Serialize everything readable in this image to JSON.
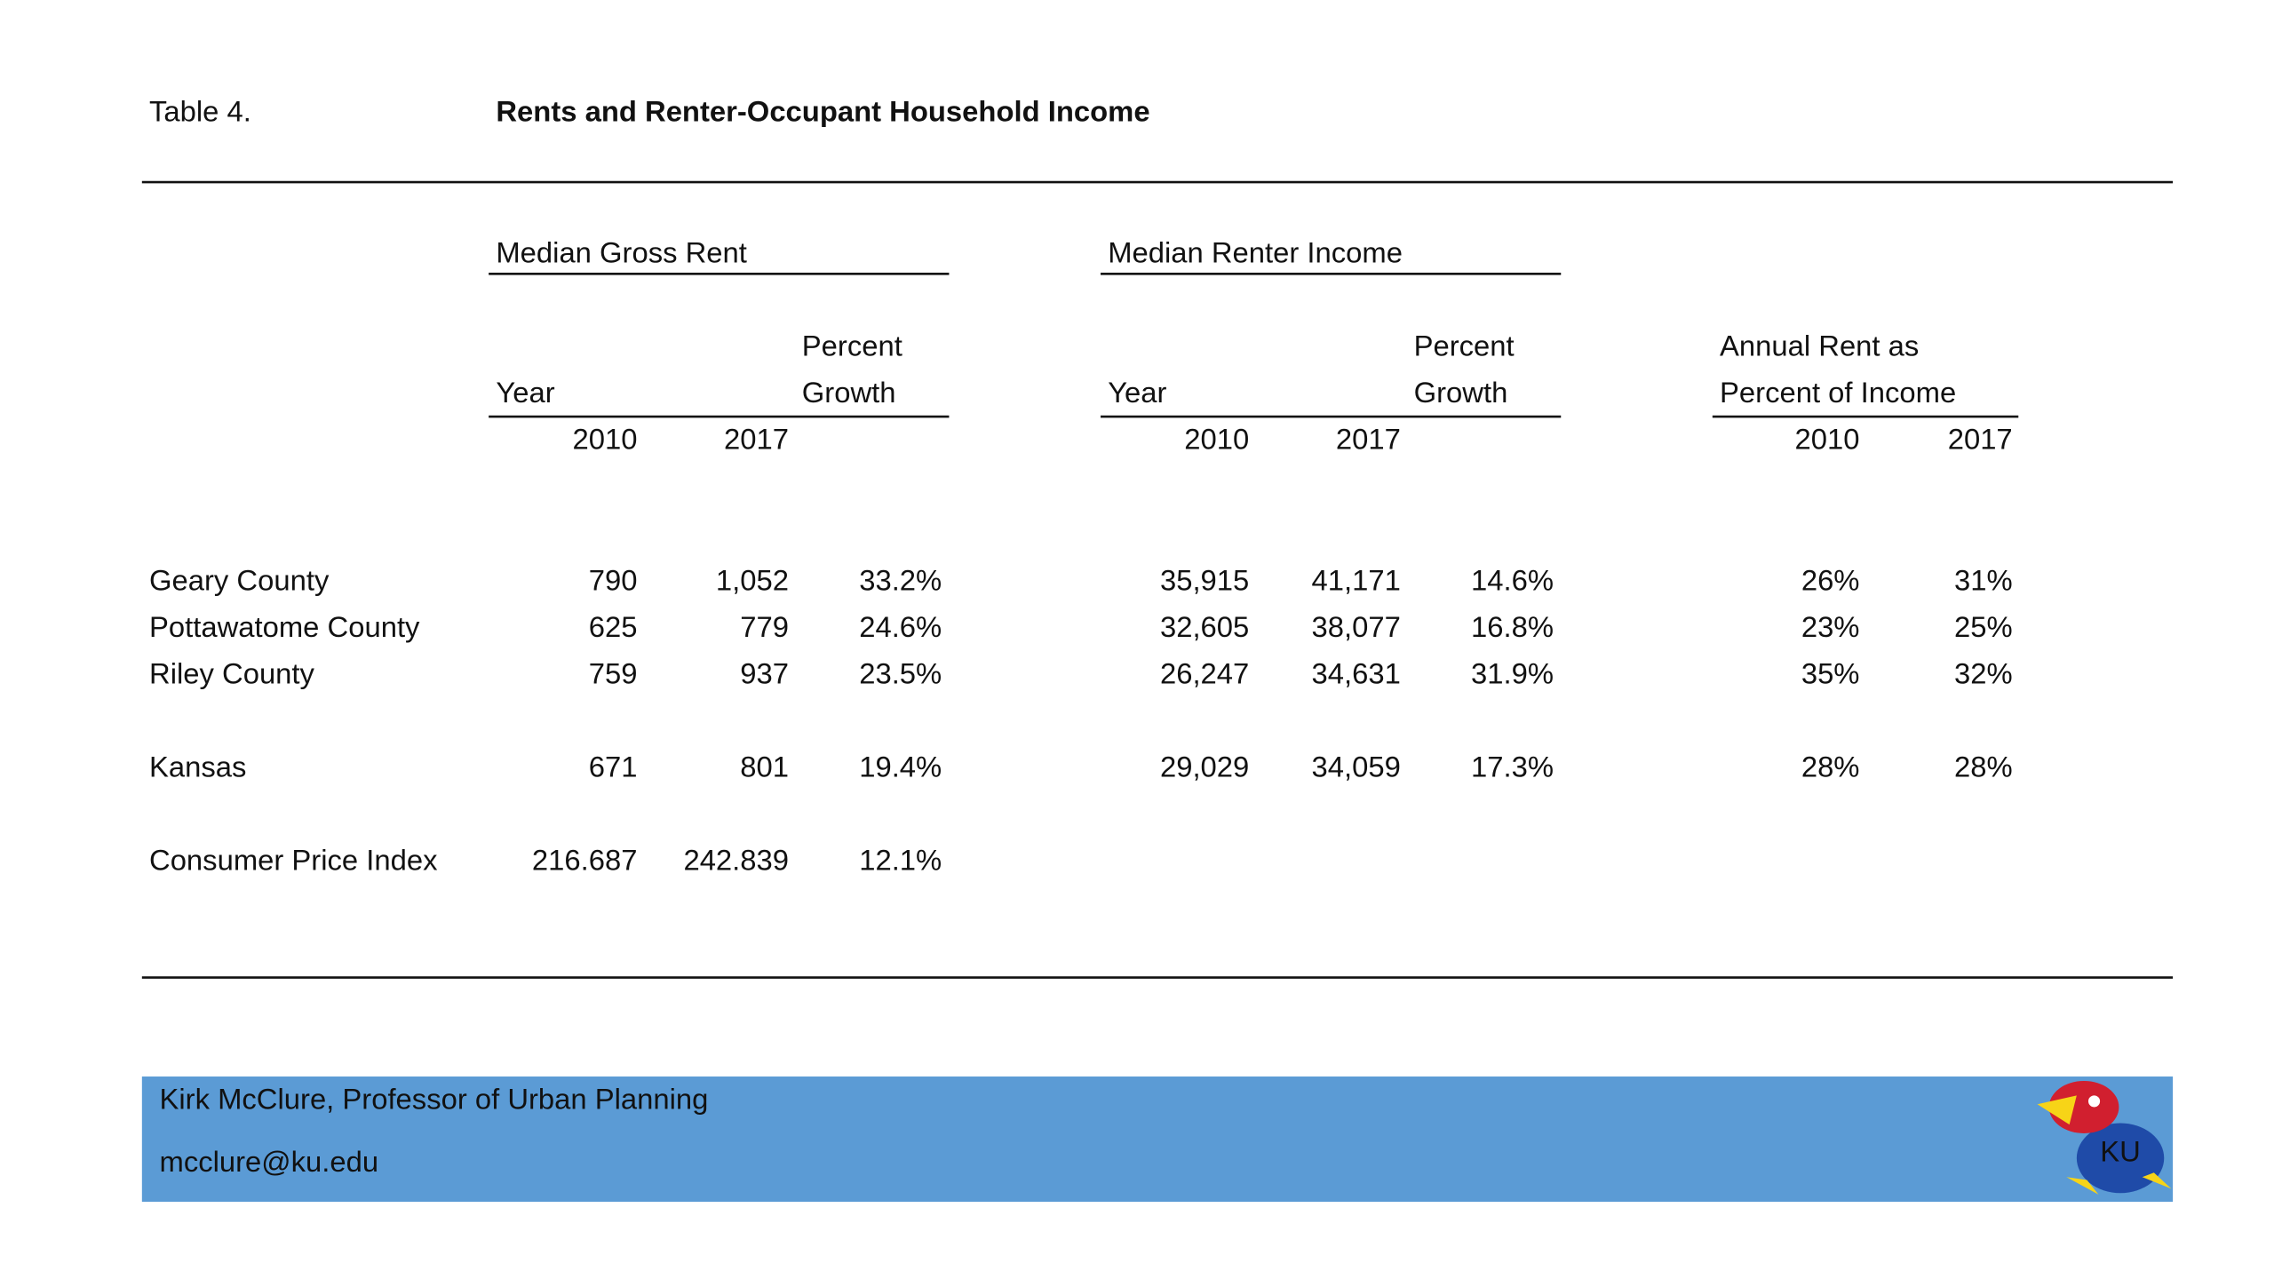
{
  "header": {
    "label": "Table 4.",
    "title": "Rents and Renter-Occupant Household Income"
  },
  "table": {
    "groups": [
      {
        "title": "Median Gross Rent",
        "year_label": "Year",
        "growth_label": [
          "Percent",
          "Growth"
        ],
        "years": [
          "2010",
          "2017"
        ]
      },
      {
        "title": "Median Renter Income",
        "year_label": "Year",
        "growth_label": [
          "Percent",
          "Growth"
        ],
        "years": [
          "2010",
          "2017"
        ]
      }
    ],
    "ratio": {
      "title": [
        "Annual Rent as",
        "Percent of Income"
      ],
      "years": [
        "2010",
        "2017"
      ]
    },
    "rows": [
      {
        "label": "Geary County",
        "cells": [
          "790",
          "1,052",
          "33.2%",
          "35,915",
          "41,171",
          "14.6%",
          "26%",
          "31%"
        ]
      },
      {
        "label": "Pottawatome County",
        "cells": [
          "625",
          "779",
          "24.6%",
          "32,605",
          "38,077",
          "16.8%",
          "23%",
          "25%"
        ]
      },
      {
        "label": "Riley County",
        "cells": [
          "759",
          "937",
          "23.5%",
          "26,247",
          "34,631",
          "31.9%",
          "35%",
          "32%"
        ]
      },
      {
        "label": "Kansas",
        "cells": [
          "671",
          "801",
          "19.4%",
          "29,029",
          "34,059",
          "17.3%",
          "28%",
          "28%"
        ]
      },
      {
        "label": "Consumer Price Index",
        "cells": [
          "216.687",
          "242.839",
          "12.1%"
        ]
      }
    ]
  },
  "footer": {
    "name": "Kirk McClure, Professor of Urban Planning",
    "email": "mcclure@ku.edu",
    "logo_text": "KU"
  }
}
